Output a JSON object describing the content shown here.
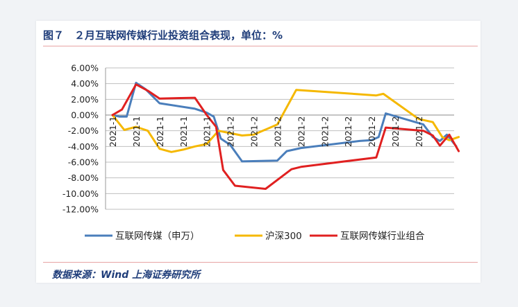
{
  "figure": {
    "title": "图７　２月互联网传媒行业投资组合表现，单位：%",
    "source": "数据来源：Wind 上海证券研究所"
  },
  "chart_data": {
    "type": "line",
    "x": [
      "2021-1",
      "2021-1",
      "2021-1",
      "2021-1",
      "2021-1",
      "2021-2",
      "2021-2",
      "2021-2",
      "2021-2",
      "2021-2",
      "2021-2",
      "2021-2",
      "2021-2",
      "2021-2"
    ],
    "ylim": [
      -12,
      6
    ],
    "y_ticks": [
      "6.00%",
      "4.00%",
      "2.00%",
      "0.00%",
      "-2.00%",
      "-4.00%",
      "-6.00%",
      "-8.00%",
      "-10.00%",
      "-12.00%"
    ],
    "grid": true,
    "legend": "bottom",
    "series": [
      {
        "name": "互联网传媒（申万）",
        "color": "#4a7ebb",
        "points": [
          [
            0,
            0
          ],
          [
            0.3,
            -0.2
          ],
          [
            0.6,
            -0.2
          ],
          [
            1,
            4.1
          ],
          [
            1.4,
            3.3
          ],
          [
            2,
            1.5
          ],
          [
            3.5,
            0.8
          ],
          [
            4,
            0.3
          ],
          [
            4.3,
            -0.2
          ],
          [
            4.6,
            -3.0
          ],
          [
            5,
            -3.8
          ],
          [
            5.5,
            -5.9
          ],
          [
            7,
            -5.8
          ],
          [
            7.4,
            -4.6
          ],
          [
            8,
            -4.2
          ],
          [
            10.5,
            -3.3
          ],
          [
            11,
            -3.2
          ],
          [
            11.3,
            -2.8
          ],
          [
            11.6,
            0.2
          ],
          [
            13.2,
            -1.2
          ],
          [
            13.6,
            -2.8
          ],
          [
            13.9,
            -3.3
          ],
          [
            14.2,
            -2.5
          ],
          [
            14.6,
            -4.0
          ]
        ]
      },
      {
        "name": "沪深300",
        "color": "#f5b800",
        "points": [
          [
            0,
            0
          ],
          [
            0.5,
            -1.9
          ],
          [
            1,
            -1.5
          ],
          [
            1.5,
            -2.0
          ],
          [
            2,
            -4.3
          ],
          [
            2.5,
            -4.7
          ],
          [
            3,
            -4.4
          ],
          [
            3.5,
            -4.0
          ],
          [
            4,
            -3.7
          ],
          [
            4.5,
            -2.0
          ],
          [
            5,
            -2.3
          ],
          [
            5.5,
            -2.6
          ],
          [
            6,
            -2.5
          ],
          [
            7,
            -1.2
          ],
          [
            7.8,
            3.2
          ],
          [
            11.2,
            2.5
          ],
          [
            11.5,
            2.7
          ],
          [
            13,
            -0.5
          ],
          [
            13.6,
            -0.9
          ],
          [
            14,
            -2.8
          ],
          [
            14.3,
            -3.2
          ],
          [
            14.7,
            -2.8
          ]
        ]
      },
      {
        "name": "互联网传媒行业组合",
        "color": "#e02020",
        "points": [
          [
            0,
            0
          ],
          [
            0.4,
            0.7
          ],
          [
            1,
            3.9
          ],
          [
            1.5,
            3.1
          ],
          [
            2,
            2.1
          ],
          [
            3.5,
            2.2
          ],
          [
            4,
            0.0
          ],
          [
            4.4,
            -1.5
          ],
          [
            4.7,
            -7.0
          ],
          [
            5.2,
            -9.0
          ],
          [
            6.5,
            -9.4
          ],
          [
            7.6,
            -6.9
          ],
          [
            8,
            -6.6
          ],
          [
            11.2,
            -5.4
          ],
          [
            11.6,
            -1.6
          ],
          [
            13.2,
            -2.0
          ],
          [
            13.6,
            -2.6
          ],
          [
            13.9,
            -3.9
          ],
          [
            14.3,
            -2.5
          ],
          [
            14.7,
            -4.6
          ]
        ]
      }
    ]
  }
}
